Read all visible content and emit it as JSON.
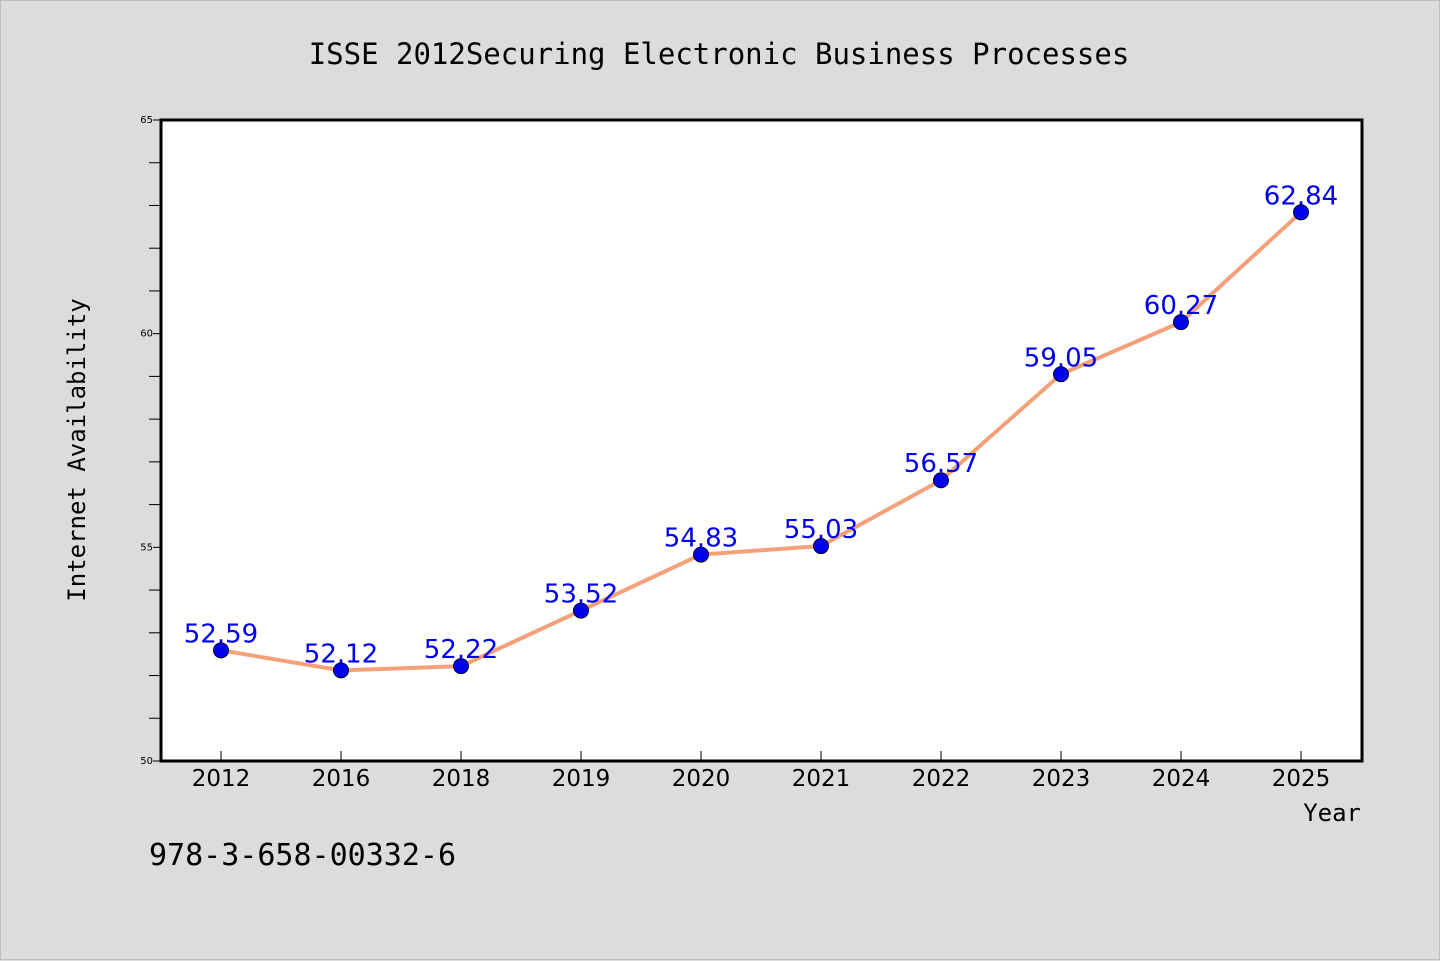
{
  "chart_data": {
    "type": "line",
    "title": "ISSE 2012Securing Electronic Business Processes",
    "xlabel": "Year",
    "ylabel": "Internet Availability",
    "categories": [
      "2012",
      "2016",
      "2018",
      "2019",
      "2020",
      "2021",
      "2022",
      "2023",
      "2024",
      "2025"
    ],
    "series": [
      {
        "values": [
          52.59,
          52.12,
          52.22,
          53.52,
          54.83,
          55.03,
          56.57,
          59.05,
          60.27,
          62.84
        ],
        "labels": [
          "52.59",
          "52.12",
          "52.22",
          "53.52",
          "54.83",
          "55.03",
          "56.57",
          "59.05",
          "60.27",
          "62.84"
        ],
        "line_color": "#f4a07a",
        "marker_color": "#0000ee"
      }
    ],
    "ylim": [
      50,
      65
    ],
    "yticks": [
      "50",
      "55",
      "60",
      "65"
    ],
    "grid": false,
    "legend": "none",
    "footnote": "978-3-658-00332-6"
  }
}
